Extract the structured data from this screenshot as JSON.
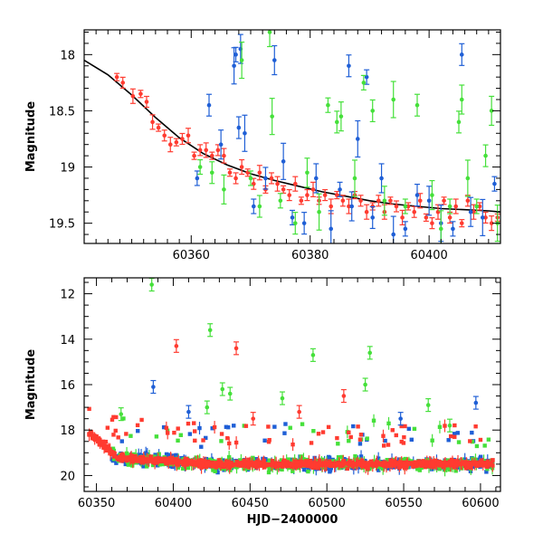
{
  "chart_data": [
    {
      "type": "scatter",
      "panel": "top",
      "xlabel": "",
      "ylabel": "Magnitude",
      "xlim": [
        60342,
        60412
      ],
      "ylim": [
        19.68,
        17.78
      ],
      "y_inverted": true,
      "x_ticks": [
        60360,
        60380,
        60400
      ],
      "x_tick_labels": [
        "60360",
        "60380",
        "60400"
      ],
      "y_ticks": [
        18,
        18.5,
        19,
        19.5
      ],
      "y_tick_labels": [
        "18",
        "18.5",
        "19",
        "19.5"
      ],
      "grid": false,
      "fit_curve": {
        "color": "#000000",
        "x": [
          60342,
          60346,
          60350,
          60354,
          60358,
          60362,
          60366,
          60370,
          60374,
          60378,
          60382,
          60386,
          60390,
          60394,
          60398,
          60402,
          60406,
          60410,
          60412
        ],
        "y": [
          18.05,
          18.18,
          18.36,
          18.56,
          18.74,
          18.88,
          18.98,
          19.06,
          19.12,
          19.17,
          19.22,
          19.26,
          19.3,
          19.33,
          19.35,
          19.37,
          19.38,
          19.39,
          19.4
        ]
      },
      "series": [
        {
          "color": "#ff3b30",
          "x": [
            60347.5,
            60348.5,
            60350.2,
            60351.5,
            60352.5,
            60353.5,
            60354.5,
            60355.5,
            60356.5,
            60357.5,
            60358.5,
            60359.5,
            60360.5,
            60361.5,
            60362.5,
            60363.5,
            60364.5,
            60365.5,
            60366.5,
            60367.5,
            60368.5,
            60369.5,
            60370.5,
            60371.5,
            60372.5,
            60373.5,
            60374.5,
            60375.5,
            60376.5,
            60377.5,
            60378.5,
            60379.5,
            60380.5,
            60381.5,
            60382.5,
            60383.5,
            60384.5,
            60385.5,
            60386.5,
            60387.5,
            60388.5,
            60389.5,
            60390.5,
            60391.5,
            60392.5,
            60393.5,
            60394.5,
            60395.5,
            60396.5,
            60397.5,
            60398.5,
            60399.5,
            60400.5,
            60401.5,
            60402.5,
            60403.5,
            60404.5,
            60405.5,
            60406.5,
            60407.5,
            60408.5,
            60409.5,
            60410.5,
            60411.5
          ],
          "y": [
            18.2,
            18.25,
            18.37,
            18.35,
            18.42,
            18.6,
            18.65,
            18.72,
            18.8,
            18.78,
            18.75,
            18.72,
            18.9,
            18.85,
            18.85,
            18.9,
            18.85,
            18.9,
            19.05,
            19.1,
            19.0,
            19.05,
            19.15,
            19.05,
            19.2,
            19.1,
            19.15,
            19.2,
            19.25,
            19.15,
            19.3,
            19.25,
            19.2,
            19.3,
            19.25,
            19.35,
            19.25,
            19.3,
            19.35,
            19.25,
            19.3,
            19.4,
            19.35,
            19.3,
            19.4,
            19.3,
            19.35,
            19.45,
            19.35,
            19.4,
            19.3,
            19.45,
            19.5,
            19.4,
            19.3,
            19.45,
            19.35,
            19.5,
            19.3,
            19.4,
            19.35,
            19.45,
            19.5,
            19.45
          ]
        },
        {
          "color": "#1f5fd6",
          "x": [
            60361,
            60363,
            60365,
            60367.2,
            60367.5,
            60368,
            60368.3,
            60369,
            60370.5,
            60372.5,
            60374,
            60375.5,
            60377,
            60379,
            60381,
            60383.5,
            60385,
            60386.5,
            60387,
            60388,
            60389.5,
            60390.5,
            60392,
            60394,
            60396,
            60398,
            60400,
            60402,
            60404,
            60405.5,
            60407,
            60409,
            60411
          ],
          "y": [
            19.1,
            18.45,
            18.8,
            18.1,
            18.0,
            18.65,
            17.95,
            18.7,
            19.35,
            19.1,
            18.05,
            18.95,
            19.45,
            19.5,
            19.1,
            19.55,
            19.2,
            18.1,
            19.35,
            18.75,
            18.2,
            19.45,
            19.1,
            19.6,
            19.55,
            19.25,
            19.3,
            19.5,
            19.55,
            18.0,
            19.4,
            19.45,
            19.15
          ]
        },
        {
          "color": "#45e03a",
          "x": [
            60361.5,
            60363.5,
            60365.5,
            60368.5,
            60370,
            60371.5,
            60373.2,
            60373.6,
            60375,
            60377.5,
            60379.5,
            60381.5,
            60383,
            60384.5,
            60385.2,
            60387.5,
            60389,
            60390.5,
            60392.5,
            60394,
            60396,
            60398,
            60400.5,
            60402,
            60403.5,
            60405,
            60405.5,
            60406.5,
            60408,
            60409.5,
            60410.5,
            60411.5
          ],
          "y": [
            19.0,
            19.05,
            19.2,
            18.05,
            19.1,
            19.35,
            17.8,
            18.55,
            19.3,
            19.5,
            19.05,
            19.4,
            18.45,
            18.6,
            18.55,
            19.1,
            18.25,
            18.5,
            19.3,
            18.4,
            19.35,
            18.45,
            19.25,
            19.55,
            19.35,
            18.6,
            18.4,
            19.1,
            19.35,
            18.9,
            18.5,
            19.5
          ]
        }
      ]
    },
    {
      "type": "scatter",
      "panel": "bottom",
      "xlabel": "HJD−2400000",
      "ylabel": "Magnitude",
      "xlim": [
        60342,
        60613
      ],
      "ylim": [
        20.7,
        11.3
      ],
      "y_inverted": true,
      "x_ticks": [
        60350,
        60400,
        60450,
        60500,
        60550,
        60600
      ],
      "x_tick_labels": [
        "60350",
        "60400",
        "60450",
        "60500",
        "60550",
        "60600"
      ],
      "y_ticks": [
        12,
        14,
        16,
        18,
        20
      ],
      "y_tick_labels": [
        "12",
        "14",
        "16",
        "18",
        "20"
      ],
      "grid": false,
      "outliers": [
        {
          "color": "#45e03a",
          "x": 60386,
          "y": 11.6
        },
        {
          "color": "#ff3b30",
          "x": 60402,
          "y": 14.3
        },
        {
          "color": "#45e03a",
          "x": 60424,
          "y": 13.6
        },
        {
          "color": "#ff3b30",
          "x": 60441,
          "y": 14.4
        },
        {
          "color": "#45e03a",
          "x": 60528,
          "y": 14.6
        },
        {
          "color": "#45e03a",
          "x": 60491,
          "y": 14.7
        },
        {
          "color": "#45e03a",
          "x": 60525,
          "y": 16.0
        },
        {
          "color": "#1f5fd6",
          "x": 60387,
          "y": 16.1
        },
        {
          "color": "#45e03a",
          "x": 60432,
          "y": 16.2
        },
        {
          "color": "#45e03a",
          "x": 60437,
          "y": 16.4
        },
        {
          "color": "#ff3b30",
          "x": 60511,
          "y": 16.5
        },
        {
          "color": "#45e03a",
          "x": 60471,
          "y": 16.6
        },
        {
          "color": "#1f5fd6",
          "x": 60597,
          "y": 16.8
        },
        {
          "color": "#45e03a",
          "x": 60566,
          "y": 16.9
        },
        {
          "color": "#45e03a",
          "x": 60366,
          "y": 17.3
        },
        {
          "color": "#1f5fd6",
          "x": 60410,
          "y": 17.2
        },
        {
          "color": "#ff3b30",
          "x": 60482,
          "y": 17.2
        },
        {
          "color": "#45e03a",
          "x": 60422,
          "y": 17.0
        },
        {
          "color": "#ff3b30",
          "x": 60452,
          "y": 17.5
        },
        {
          "color": "#1f5fd6",
          "x": 60548,
          "y": 17.5
        },
        {
          "color": "#45e03a",
          "x": 60580,
          "y": 17.8
        }
      ],
      "series": [
        {
          "color": "#ff3b30",
          "note_range_x": [
            60345,
            60608
          ]
        },
        {
          "color": "#1f5fd6",
          "note_range_x": [
            60360,
            60608
          ]
        },
        {
          "color": "#45e03a",
          "note_range_x": [
            60360,
            60608
          ]
        }
      ]
    }
  ]
}
